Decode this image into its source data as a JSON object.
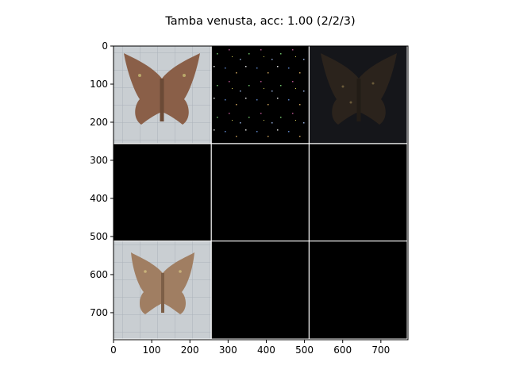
{
  "chart_data": {
    "type": "image-grid",
    "title": "Tamba venusta, acc: 1.00 (2/2/3)",
    "xlabel": "",
    "ylabel": "",
    "xlim": [
      0,
      771
    ],
    "ylim": [
      771,
      0
    ],
    "xticks": [
      0,
      100,
      200,
      300,
      400,
      500,
      600,
      700
    ],
    "yticks": [
      0,
      100,
      200,
      300,
      400,
      500,
      600,
      700
    ],
    "grid_separator_color": "#ffffff",
    "tile_extent": 256,
    "tiles": [
      {
        "row": 0,
        "col": 0,
        "content": "moth photo on grid paper",
        "bg": "#c9cfd3"
      },
      {
        "row": 0,
        "col": 1,
        "content": "sparse attribution noise",
        "bg": "#000000"
      },
      {
        "row": 0,
        "col": 2,
        "content": "darkened moth",
        "bg": "#15161a"
      },
      {
        "row": 1,
        "col": 0,
        "content": "blank",
        "bg": "#000000"
      },
      {
        "row": 1,
        "col": 1,
        "content": "blank",
        "bg": "#000000"
      },
      {
        "row": 1,
        "col": 2,
        "content": "blank",
        "bg": "#000000"
      },
      {
        "row": 2,
        "col": 0,
        "content": "moth photo on grid paper",
        "bg": "#c7ccd2"
      },
      {
        "row": 2,
        "col": 1,
        "content": "blank",
        "bg": "#000000"
      },
      {
        "row": 2,
        "col": 2,
        "content": "blank",
        "bg": "#000000"
      }
    ]
  }
}
